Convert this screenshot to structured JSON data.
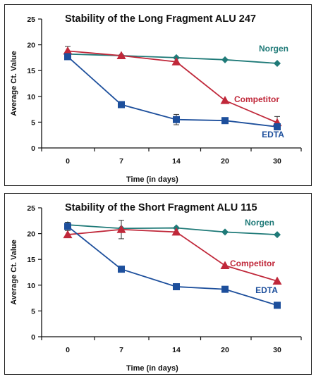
{
  "colors": {
    "norgen": "#1f7a78",
    "competitor": "#c0283a",
    "edta": "#1d4f9c",
    "axis": "#111111"
  },
  "chart_data": [
    {
      "type": "line",
      "title": "Stability of the Long Fragment ALU 247",
      "xlabel": "Time (in days)",
      "ylabel": "Average Ct. Value",
      "categories": [
        "0",
        "7",
        "14",
        "20",
        "30"
      ],
      "yticks": [
        "0",
        "5",
        "10",
        "15",
        "20",
        "25"
      ],
      "ylim": [
        0,
        25
      ],
      "grid": false,
      "series": [
        {
          "name": "Norgen",
          "key": "norgen",
          "marker": "diamond",
          "values": [
            18.2,
            17.9,
            17.5,
            17.1,
            16.4
          ],
          "errors": [
            0,
            0,
            0,
            0,
            0
          ]
        },
        {
          "name": "Competitor",
          "key": "competitor",
          "marker": "triangle",
          "values": [
            18.8,
            17.9,
            16.7,
            9.2,
            4.9
          ],
          "errors": [
            0.9,
            0,
            0,
            0,
            1.2
          ]
        },
        {
          "name": "EDTA",
          "key": "edta",
          "marker": "square",
          "values": [
            17.7,
            8.4,
            5.5,
            5.3,
            4.1
          ],
          "errors": [
            0.5,
            0,
            1.0,
            0,
            0
          ]
        }
      ]
    },
    {
      "type": "line",
      "title": "Stability of the Short Fragment ALU 115",
      "xlabel": "Time (in days)",
      "ylabel": "Average Ct. Value",
      "categories": [
        "0",
        "7",
        "14",
        "20",
        "30"
      ],
      "yticks": [
        "0",
        "5",
        "10",
        "15",
        "20",
        "25"
      ],
      "ylim": [
        0,
        25
      ],
      "grid": false,
      "series": [
        {
          "name": "Norgen",
          "key": "norgen",
          "marker": "diamond",
          "values": [
            21.7,
            21.0,
            21.1,
            20.3,
            19.8
          ],
          "errors": [
            0,
            0,
            0,
            0,
            0
          ]
        },
        {
          "name": "Competitor",
          "key": "competitor",
          "marker": "triangle",
          "values": [
            19.8,
            20.8,
            20.3,
            13.8,
            10.8
          ],
          "errors": [
            0,
            1.8,
            0,
            0,
            0
          ]
        },
        {
          "name": "EDTA",
          "key": "edta",
          "marker": "square",
          "values": [
            21.4,
            13.1,
            9.7,
            9.2,
            6.1
          ],
          "errors": [
            0.8,
            0,
            0,
            0,
            0
          ]
        }
      ]
    }
  ]
}
